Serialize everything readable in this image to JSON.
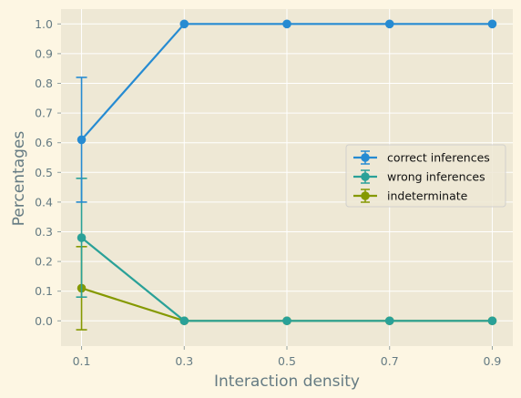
{
  "chart_data": {
    "type": "line",
    "title": "",
    "xlabel": "Interaction density",
    "ylabel": "Percentages",
    "x": [
      0.1,
      0.3,
      0.5,
      0.7,
      0.9
    ],
    "x_tick_labels": [
      "0.1",
      "0.3",
      "0.5",
      "0.7",
      "0.9"
    ],
    "y_tick_labels": [
      "0.0",
      "0.1",
      "0.2",
      "0.3",
      "0.4",
      "0.5",
      "0.6",
      "0.7",
      "0.8",
      "0.9",
      "1.0"
    ],
    "xlim": [
      0.06,
      0.94
    ],
    "ylim": [
      -0.085,
      1.05
    ],
    "grid": true,
    "legend_position": "center-right",
    "background": "#eee8d5",
    "figure_background": "#fdf6e3",
    "series": [
      {
        "name": "correct inferences",
        "color": "#268bd2",
        "values": [
          0.61,
          1.0,
          1.0,
          1.0,
          1.0
        ],
        "error_low": [
          0.4,
          1.0,
          1.0,
          1.0,
          1.0
        ],
        "error_high": [
          0.82,
          1.0,
          1.0,
          1.0,
          1.0
        ]
      },
      {
        "name": "wrong inferences",
        "color": "#2aa198",
        "values": [
          0.28,
          0.0,
          0.0,
          0.0,
          0.0
        ],
        "error_low": [
          0.08,
          0.0,
          0.0,
          0.0,
          0.0
        ],
        "error_high": [
          0.48,
          0.0,
          0.0,
          0.0,
          0.0
        ]
      },
      {
        "name": "indeterminate",
        "color": "#859900",
        "values": [
          0.11,
          0.0,
          0.0,
          0.0,
          0.0
        ],
        "error_low": [
          -0.03,
          0.0,
          0.0,
          0.0,
          0.0
        ],
        "error_high": [
          0.25,
          0.0,
          0.0,
          0.0,
          0.0
        ]
      }
    ]
  }
}
